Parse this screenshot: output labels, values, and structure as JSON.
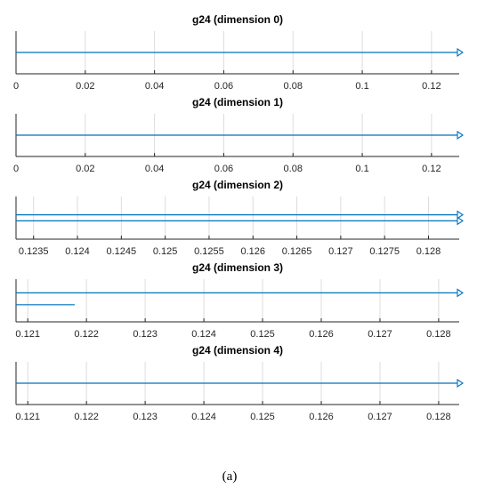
{
  "caption": "(a)",
  "chart_data": [
    {
      "type": "line",
      "title": "g24 (dimension 0)",
      "xlim": [
        0,
        0.128
      ],
      "ticks": [
        0,
        0.02,
        0.04,
        0.06,
        0.08,
        0.1,
        0.12
      ],
      "tick_labels": [
        "0",
        "0.02",
        "0.04",
        "0.06",
        "0.08",
        "0.1",
        "0.12"
      ],
      "grid": true,
      "series": [
        {
          "x": [
            0,
            0.128
          ],
          "level": 0.5,
          "arrow_end": true
        }
      ]
    },
    {
      "type": "line",
      "title": "g24 (dimension 1)",
      "xlim": [
        0,
        0.128
      ],
      "ticks": [
        0,
        0.02,
        0.04,
        0.06,
        0.08,
        0.1,
        0.12
      ],
      "tick_labels": [
        "0",
        "0.02",
        "0.04",
        "0.06",
        "0.08",
        "0.1",
        "0.12"
      ],
      "grid": true,
      "series": [
        {
          "x": [
            0,
            0.128
          ],
          "level": 0.5,
          "arrow_end": true
        }
      ]
    },
    {
      "type": "line",
      "title": "g24 (dimension 2)",
      "xlim": [
        0.1233,
        0.12835
      ],
      "ticks": [
        0.1235,
        0.124,
        0.1245,
        0.125,
        0.1255,
        0.126,
        0.1265,
        0.127,
        0.1275,
        0.128
      ],
      "tick_labels": [
        "0.1235",
        "0.124",
        "0.1245",
        "0.125",
        "0.1255",
        "0.126",
        "0.1265",
        "0.127",
        "0.1275",
        "0.128"
      ],
      "grid": true,
      "series": [
        {
          "x": [
            0.1233,
            0.12835
          ],
          "level": 0.43,
          "arrow_end": true
        },
        {
          "x": [
            0.1233,
            0.12835
          ],
          "level": 0.57,
          "arrow_end": true
        }
      ]
    },
    {
      "type": "line",
      "title": "g24 (dimension 3)",
      "xlim": [
        0.1208,
        0.12835
      ],
      "ticks": [
        0.121,
        0.122,
        0.123,
        0.124,
        0.125,
        0.126,
        0.127,
        0.128
      ],
      "tick_labels": [
        "0.121",
        "0.122",
        "0.123",
        "0.124",
        "0.125",
        "0.126",
        "0.127",
        "0.128"
      ],
      "grid": true,
      "series": [
        {
          "x": [
            0.1208,
            0.12835
          ],
          "level": 0.32,
          "arrow_end": true
        },
        {
          "x": [
            0.1208,
            0.1218
          ],
          "level": 0.6,
          "arrow_end": false
        }
      ]
    },
    {
      "type": "line",
      "title": "g24 (dimension 4)",
      "xlim": [
        0.1208,
        0.12835
      ],
      "ticks": [
        0.121,
        0.122,
        0.123,
        0.124,
        0.125,
        0.126,
        0.127,
        0.128
      ],
      "tick_labels": [
        "0.121",
        "0.122",
        "0.123",
        "0.124",
        "0.125",
        "0.126",
        "0.127",
        "0.128"
      ],
      "grid": true,
      "series": [
        {
          "x": [
            0.1208,
            0.12835
          ],
          "level": 0.5,
          "arrow_end": true
        }
      ]
    }
  ],
  "colors": {
    "line": "#0072BD",
    "grid": "#DCDCDC",
    "axis": "#262626",
    "title": "#000000",
    "tick_text": "#262626"
  }
}
